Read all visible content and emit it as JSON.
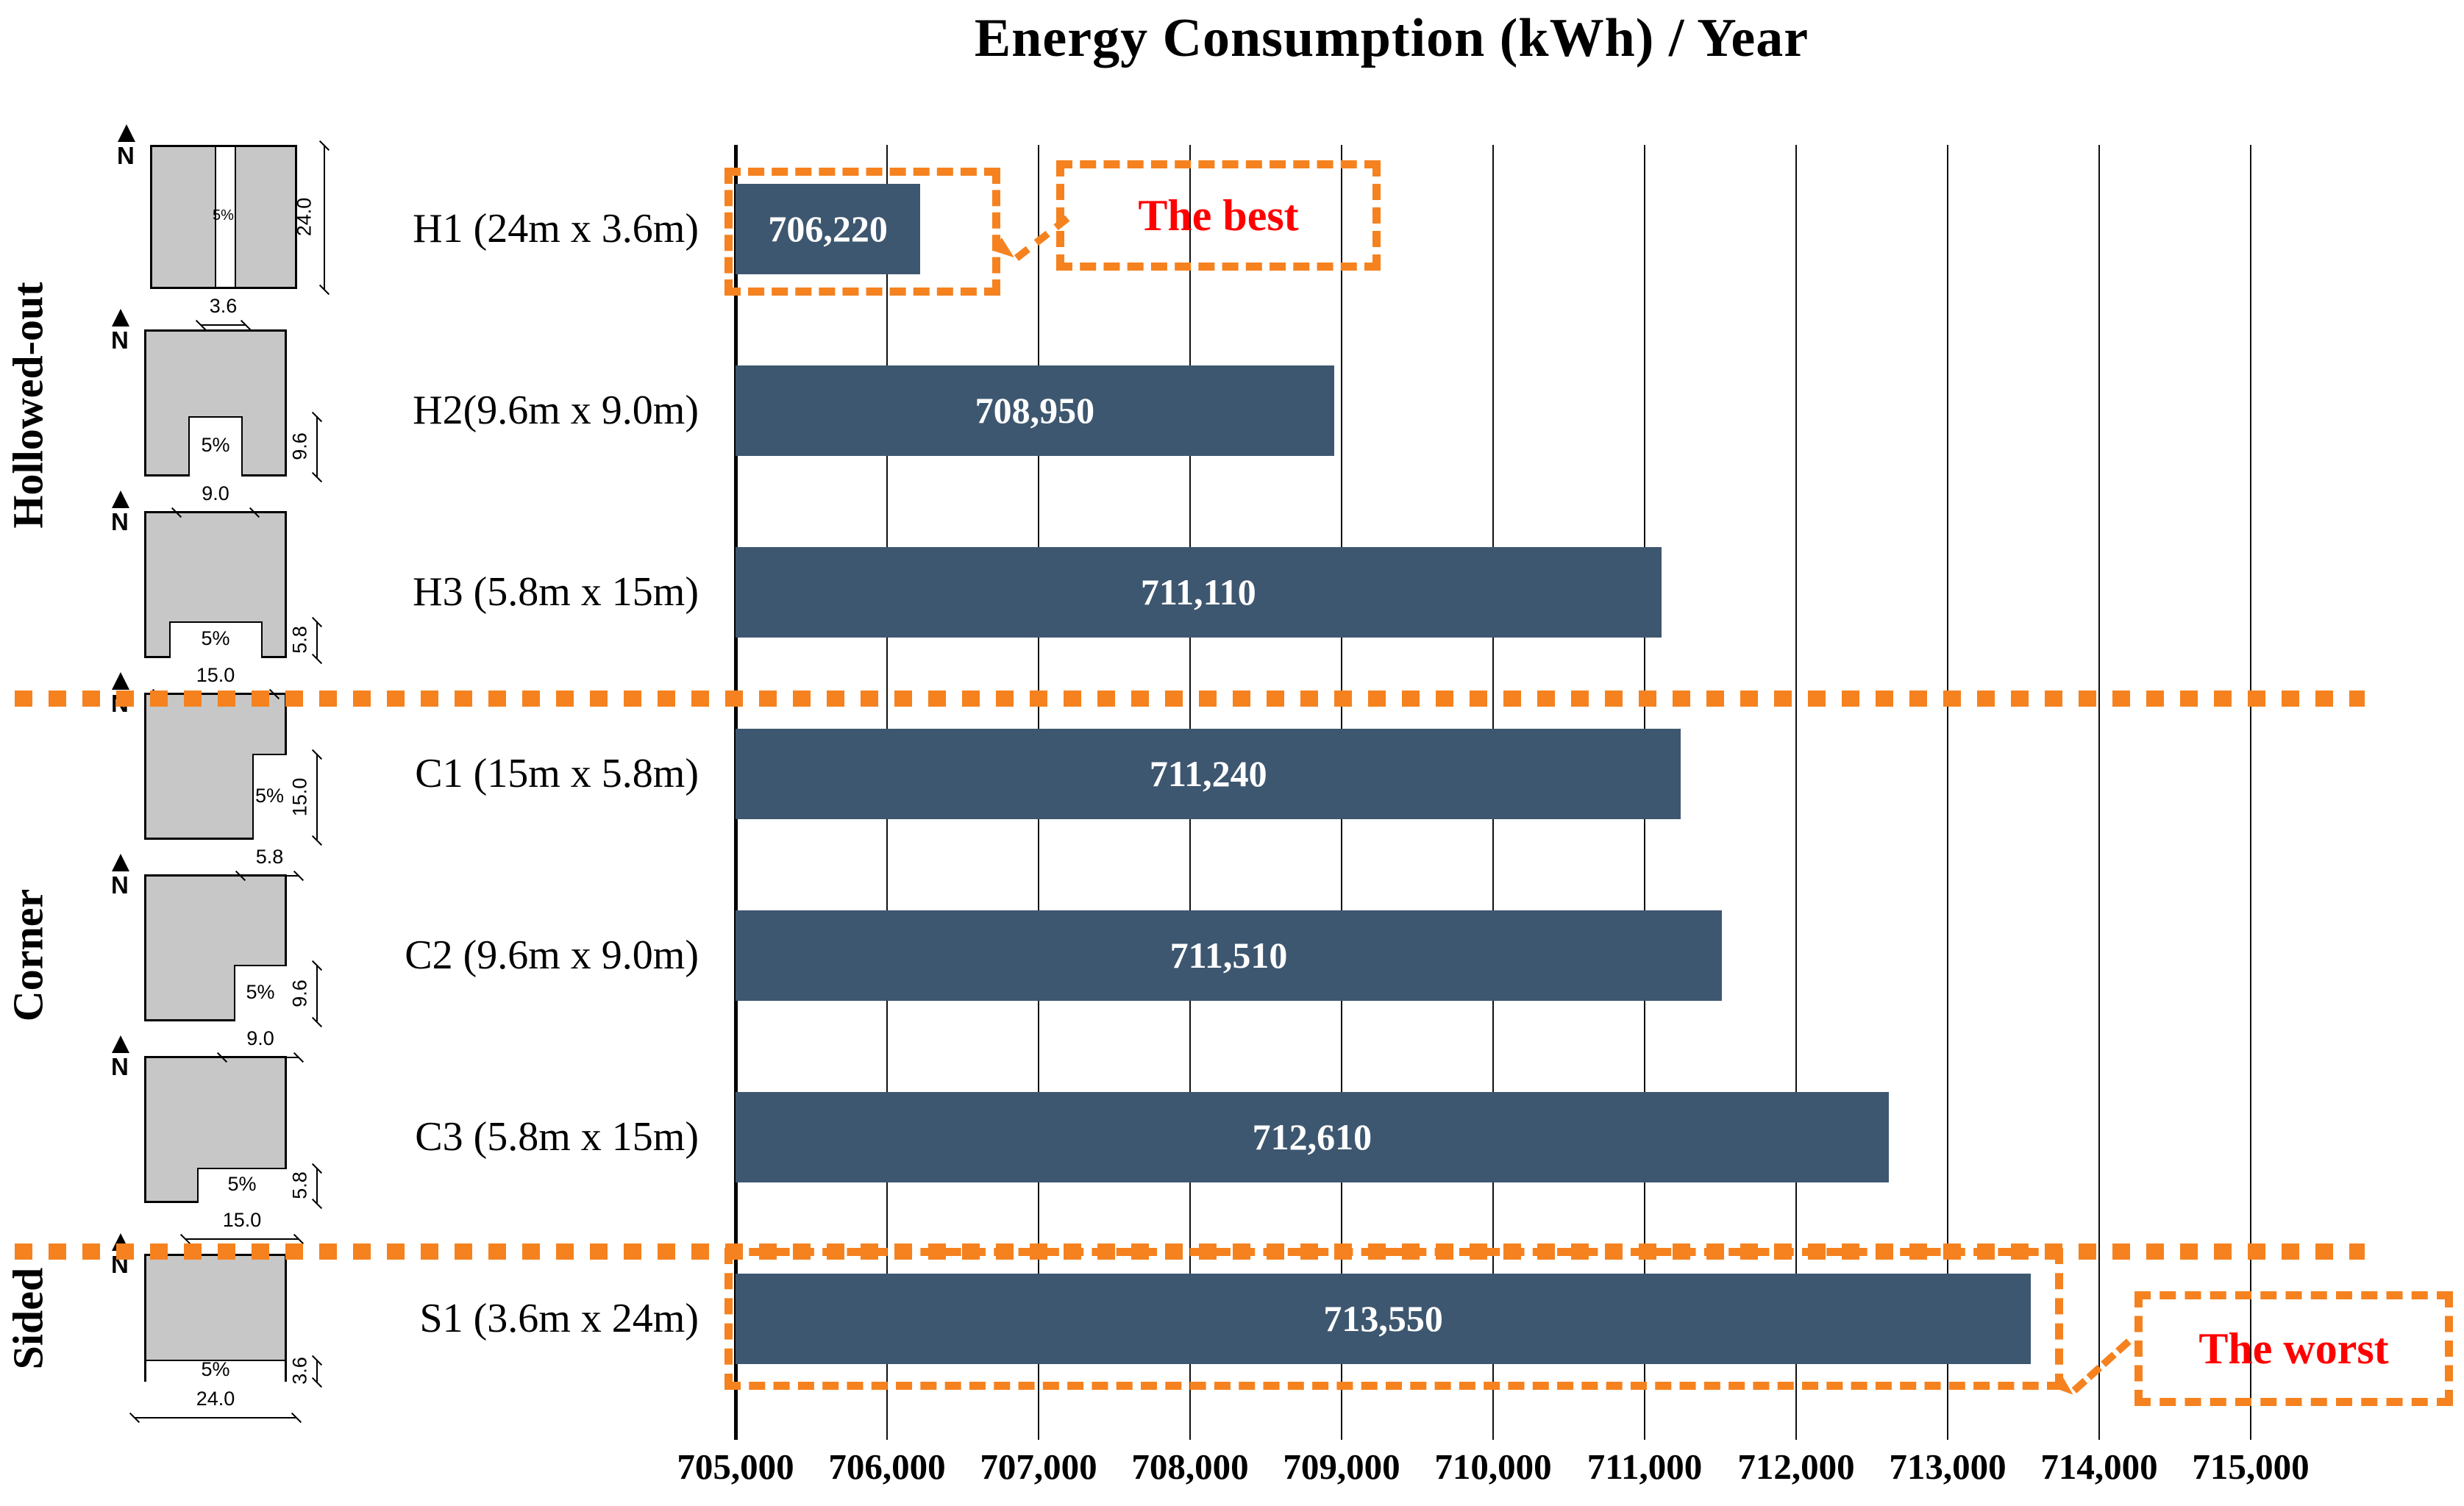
{
  "title": "Energy Consumption (kWh) / Year",
  "annotations": {
    "best": "The best",
    "worst": "The worst"
  },
  "colors": {
    "bar": "#3E5770",
    "orange": "#F5821F",
    "red": "#FF0000",
    "diagram_fill": "#C7C7C7"
  },
  "axis": {
    "min": 705000,
    "max": 715000,
    "step": 1000,
    "tick_labels": [
      "705,000",
      "706,000",
      "707,000",
      "708,000",
      "709,000",
      "710,000",
      "711,000",
      "712,000",
      "713,000",
      "714,000",
      "715,000"
    ]
  },
  "groups": [
    {
      "label": "Hollowed-out",
      "rows": [
        "H1",
        "H2",
        "H3"
      ]
    },
    {
      "label": "Corner",
      "rows": [
        "C1",
        "C2",
        "C3"
      ]
    },
    {
      "label": "Sided",
      "rows": [
        "S1"
      ]
    }
  ],
  "rows": [
    {
      "id": "H1",
      "label": "H1 (24m x 3.6m)",
      "value": 706220,
      "value_label": "706,220",
      "diagram": {
        "type": "center-stripe",
        "hollow_label": "5%",
        "side_dim": "24.0",
        "bottom_dim": "3.6"
      }
    },
    {
      "id": "H2",
      "label": "H2(9.6m x 9.0m)",
      "value": 708950,
      "value_label": "708,950",
      "diagram": {
        "type": "bottom-center-notch",
        "hollow_label": "5%",
        "side_dim": "9.6",
        "bottom_dim": "9.0"
      }
    },
    {
      "id": "H3",
      "label": "H3 (5.8m x 15m)",
      "value": 711110,
      "value_label": "711,110",
      "diagram": {
        "type": "bottom-center-notch",
        "hollow_label": "5%",
        "side_dim": "5.8",
        "bottom_dim": "15.0"
      }
    },
    {
      "id": "C1",
      "label": "C1 (15m x 5.8m)",
      "value": 711240,
      "value_label": "711,240",
      "diagram": {
        "type": "bottom-right-notch",
        "hollow_label": "5%",
        "side_dim": "15.0",
        "bottom_dim": "5.8"
      }
    },
    {
      "id": "C2",
      "label": "C2 (9.6m x 9.0m)",
      "value": 711510,
      "value_label": "711,510",
      "diagram": {
        "type": "bottom-right-notch",
        "hollow_label": "5%",
        "side_dim": "9.6",
        "bottom_dim": "9.0"
      }
    },
    {
      "id": "C3",
      "label": "C3 (5.8m x 15m)",
      "value": 712610,
      "value_label": "712,610",
      "diagram": {
        "type": "bottom-right-notch",
        "hollow_label": "5%",
        "side_dim": "5.8",
        "bottom_dim": "15.0"
      }
    },
    {
      "id": "S1",
      "label": "S1 (3.6m x 24m)",
      "value": 713550,
      "value_label": "713,550",
      "diagram": {
        "type": "bottom-strip",
        "hollow_label": "5%",
        "side_dim": "3.6",
        "bottom_dim": "24.0"
      }
    }
  ],
  "chart_data": {
    "type": "bar",
    "orientation": "horizontal",
    "title": "Energy Consumption (kWh) / Year",
    "categories": [
      "H1 (24m x 3.6m)",
      "H2(9.6m x 9.0m)",
      "H3 (5.8m x 15m)",
      "C1 (15m x 5.8m)",
      "C2 (9.6m x 9.0m)",
      "C3 (5.8m x 15m)",
      "S1 (3.6m x 24m)"
    ],
    "values": [
      706220,
      708950,
      711110,
      711240,
      711510,
      712610,
      713550
    ],
    "data_labels": [
      "706,220",
      "708,950",
      "711,110",
      "711,240",
      "711,510",
      "712,610",
      "713,550"
    ],
    "group_of_category": [
      "Hollowed-out",
      "Hollowed-out",
      "Hollowed-out",
      "Corner",
      "Corner",
      "Corner",
      "Sided"
    ],
    "xlim": [
      705000,
      715000
    ],
    "xticks": [
      705000,
      706000,
      707000,
      708000,
      709000,
      710000,
      711000,
      712000,
      713000,
      714000,
      715000
    ],
    "grid": true,
    "bar_color": "#3E5770",
    "annotations": [
      {
        "text": "The best",
        "target": "H1",
        "value": 706220
      },
      {
        "text": "The worst",
        "target": "S1",
        "value": 713550
      }
    ],
    "hollow_area_label": "5%",
    "xlabel": "",
    "ylabel": ""
  }
}
